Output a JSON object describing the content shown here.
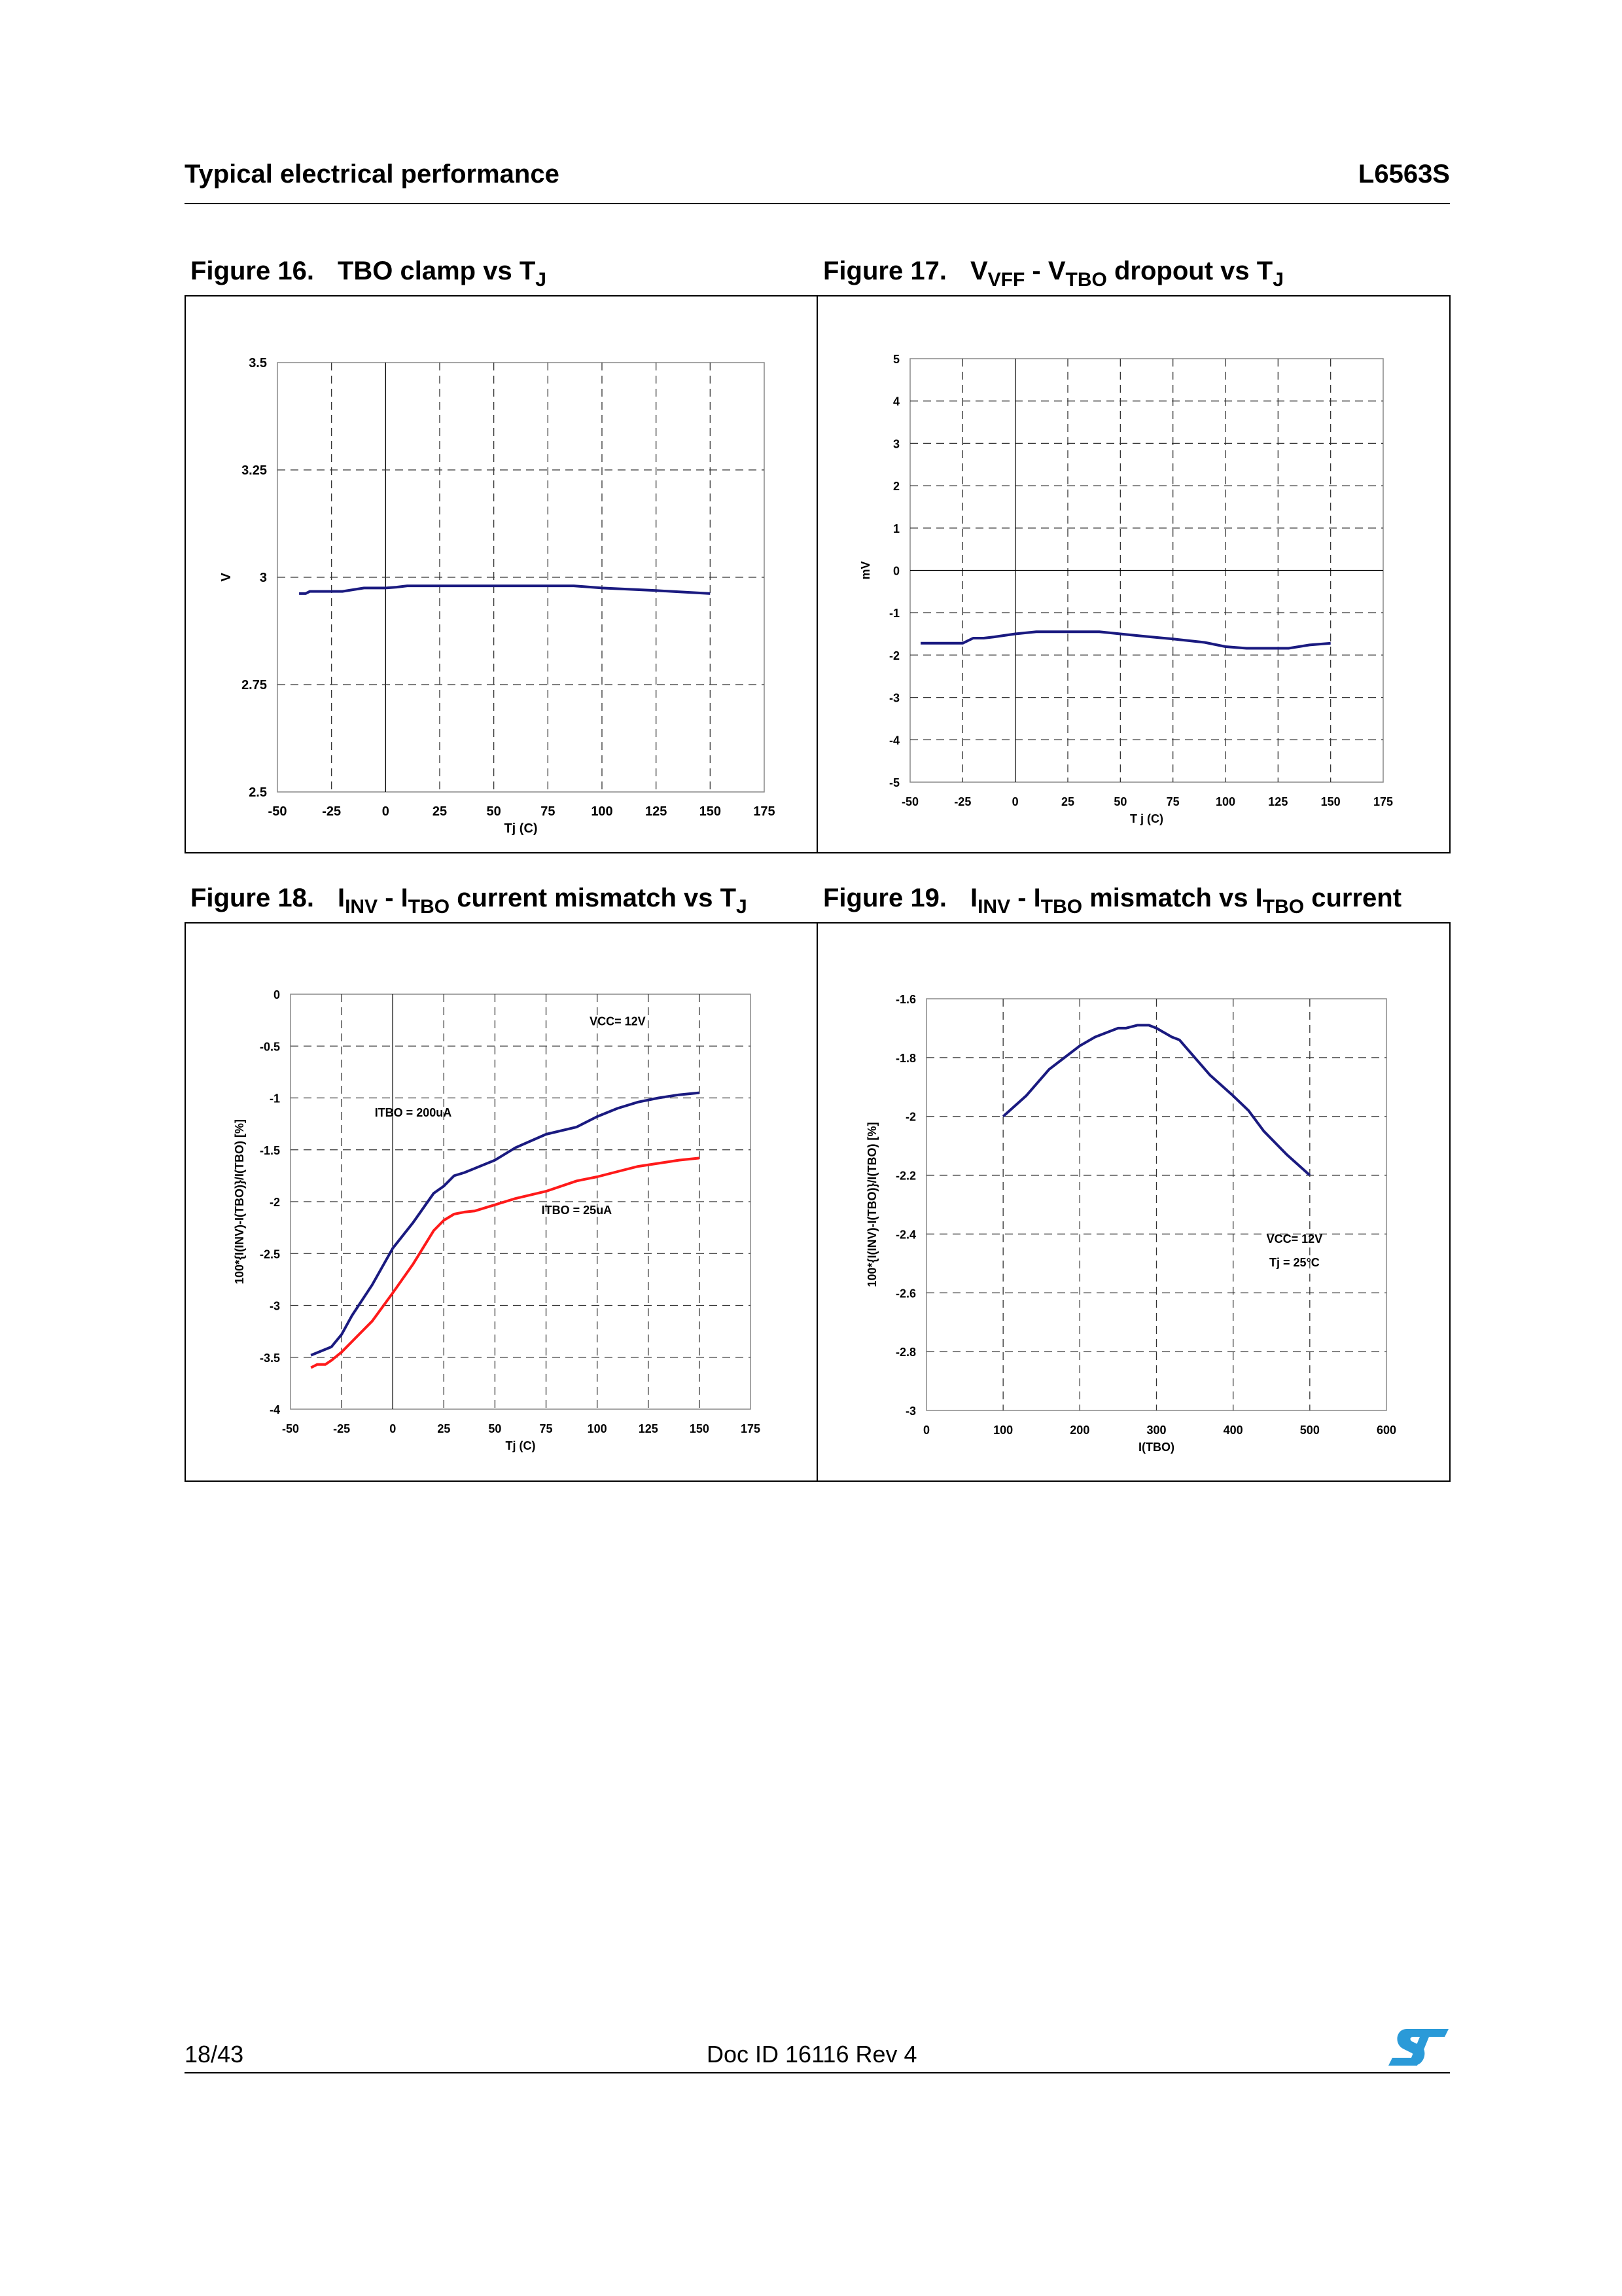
{
  "header": {
    "section": "Typical electrical performance",
    "part": "L6563S"
  },
  "figures": [
    {
      "num": "Figure 16.",
      "parts": [
        {
          "t": "TBO clamp vs T"
        },
        {
          "sub": "J"
        }
      ]
    },
    {
      "num": "Figure 17.",
      "parts": [
        {
          "t": "V"
        },
        {
          "sub": "VFF"
        },
        {
          "t": " - V"
        },
        {
          "sub": "TBO"
        },
        {
          "t": " dropout vs T"
        },
        {
          "sub": "J"
        }
      ]
    },
    {
      "num": "Figure 18.",
      "parts": [
        {
          "t": "I"
        },
        {
          "sub": "INV"
        },
        {
          "t": " - I"
        },
        {
          "sub": "TBO"
        },
        {
          "t": " current mismatch vs T"
        },
        {
          "sub": "J"
        }
      ]
    },
    {
      "num": "Figure 19.",
      "parts": [
        {
          "t": "I"
        },
        {
          "sub": "INV"
        },
        {
          "t": " - I"
        },
        {
          "sub": "TBO"
        },
        {
          "t": " mismatch vs I"
        },
        {
          "sub": "TBO"
        },
        {
          "t": " current"
        }
      ]
    }
  ],
  "chart_data": [
    {
      "type": "line",
      "title": "TBO clamp vs TJ",
      "xlabel": "Tj (C)",
      "ylabel": "V",
      "xlim": [
        -50,
        175
      ],
      "ylim": [
        2.5,
        3.5
      ],
      "xticks": [
        -50,
        -25,
        0,
        25,
        50,
        75,
        100,
        125,
        150,
        175
      ],
      "yticks": [
        2.5,
        2.75,
        3,
        3.25,
        3.5
      ],
      "ytick_labels": [
        "2.5",
        "2.75",
        "3",
        "3.25",
        "3.5"
      ],
      "grid": true,
      "series": [
        {
          "name": "TBO clamp",
          "color": "#1a1a80",
          "x": [
            -40,
            -37,
            -35,
            -30,
            -20,
            -15,
            -10,
            0,
            5,
            10,
            20,
            50,
            75,
            87,
            100,
            125,
            150
          ],
          "y": [
            2.962,
            2.962,
            2.967,
            2.967,
            2.967,
            2.971,
            2.975,
            2.975,
            2.977,
            2.98,
            2.98,
            2.98,
            2.98,
            2.98,
            2.975,
            2.969,
            2.962
          ]
        }
      ],
      "annotations": []
    },
    {
      "type": "line",
      "title": "VVFF - VTBO dropout vs TJ",
      "xlabel": "T j (C)",
      "ylabel": "mV",
      "xlim": [
        -50,
        175
      ],
      "ylim": [
        -5,
        5
      ],
      "xticks": [
        -50,
        -25,
        0,
        25,
        50,
        75,
        100,
        125,
        150,
        175
      ],
      "yticks": [
        -5,
        -4,
        -3,
        -2,
        -1,
        0,
        1,
        2,
        3,
        4,
        5
      ],
      "ytick_labels": [
        "-5",
        "-4",
        "-3",
        "-2",
        "-1",
        "0",
        "1",
        "2",
        "3",
        "4",
        "5"
      ],
      "grid": true,
      "series": [
        {
          "name": "dropout",
          "color": "#1a1a80",
          "x": [
            -45,
            -35,
            -25,
            -20,
            -15,
            -10,
            0,
            10,
            20,
            30,
            40,
            50,
            60,
            75,
            90,
            100,
            110,
            120,
            130,
            140,
            150
          ],
          "y": [
            -1.72,
            -1.72,
            -1.72,
            -1.6,
            -1.6,
            -1.57,
            -1.5,
            -1.45,
            -1.45,
            -1.45,
            -1.45,
            -1.5,
            -1.55,
            -1.62,
            -1.7,
            -1.8,
            -1.84,
            -1.84,
            -1.84,
            -1.76,
            -1.72
          ]
        }
      ],
      "annotations": []
    },
    {
      "type": "line",
      "title": "IINV - ITBO current mismatch vs TJ",
      "xlabel": "Tj (C)",
      "ylabel": "100*{I(INV)-I(TBO)}/I(TBO)   [%]",
      "xlim": [
        -50,
        175
      ],
      "ylim": [
        -4,
        0
      ],
      "xticks": [
        -50,
        -25,
        0,
        25,
        50,
        75,
        100,
        125,
        150,
        175
      ],
      "yticks": [
        -4,
        -3.5,
        -3,
        -2.5,
        -2,
        -1.5,
        -1,
        -0.5,
        0
      ],
      "ytick_labels": [
        "-4",
        "-3.5",
        "-3",
        "-2.5",
        "-2",
        "-1.5",
        "-1",
        "-0.5",
        "0"
      ],
      "grid": true,
      "series": [
        {
          "name": "ITBO = 200uA",
          "color": "#1a1a80",
          "x": [
            -40,
            -30,
            -25,
            -20,
            -10,
            0,
            10,
            20,
            25,
            30,
            35,
            40,
            50,
            60,
            75,
            90,
            100,
            110,
            120,
            130,
            140,
            150
          ],
          "y": [
            -3.48,
            -3.4,
            -3.28,
            -3.1,
            -2.8,
            -2.45,
            -2.2,
            -1.92,
            -1.85,
            -1.75,
            -1.72,
            -1.68,
            -1.6,
            -1.48,
            -1.35,
            -1.28,
            -1.18,
            -1.1,
            -1.04,
            -1.0,
            -0.97,
            -0.95
          ]
        },
        {
          "name": "ITBO = 25uA",
          "color": "#ff1a1a",
          "x": [
            -40,
            -37,
            -33,
            -30,
            -25,
            -20,
            -10,
            0,
            10,
            20,
            25,
            30,
            35,
            40,
            50,
            60,
            75,
            90,
            100,
            110,
            120,
            130,
            140,
            150
          ],
          "y": [
            -3.6,
            -3.57,
            -3.57,
            -3.53,
            -3.45,
            -3.35,
            -3.15,
            -2.88,
            -2.6,
            -2.28,
            -2.18,
            -2.12,
            -2.1,
            -2.09,
            -2.03,
            -1.97,
            -1.9,
            -1.8,
            -1.76,
            -1.71,
            -1.66,
            -1.63,
            -1.6,
            -1.58
          ]
        }
      ],
      "annotations": [
        "VCC= 12V",
        "ITBO = 200uA",
        "ITBO = 25uA"
      ]
    },
    {
      "type": "line",
      "title": "IINV - ITBO mismatch vs ITBO current",
      "xlabel": "I(TBO)",
      "ylabel": "100*{I(INV)-I(TBO)}/I(TBO)   [%]",
      "xlim": [
        0,
        600
      ],
      "ylim": [
        -3,
        -1.6
      ],
      "xticks": [
        0,
        100,
        200,
        300,
        400,
        500,
        600
      ],
      "yticks": [
        -3,
        -2.8,
        -2.6,
        -2.4,
        -2.2,
        -2,
        -1.8,
        -1.6
      ],
      "ytick_labels": [
        "-3",
        "-2.8",
        "-2.6",
        "-2.4",
        "-2.2",
        "-2",
        "-1.8",
        "-1.6"
      ],
      "grid": true,
      "series": [
        {
          "name": "mismatch",
          "color": "#1a1a80",
          "x": [
            100,
            130,
            160,
            180,
            200,
            220,
            230,
            250,
            260,
            275,
            290,
            300,
            320,
            330,
            350,
            370,
            400,
            420,
            440,
            470,
            500
          ],
          "y": [
            -2.0,
            -1.93,
            -1.84,
            -1.8,
            -1.76,
            -1.73,
            -1.72,
            -1.7,
            -1.7,
            -1.69,
            -1.69,
            -1.7,
            -1.73,
            -1.74,
            -1.8,
            -1.86,
            -1.93,
            -1.98,
            -2.05,
            -2.13,
            -2.2
          ]
        }
      ],
      "annotations": [
        "VCC= 12V",
        "Tj = 25°C"
      ]
    }
  ],
  "footer": {
    "page": "18/43",
    "doc": "Doc ID 16116 Rev 4",
    "logo": "ST"
  }
}
